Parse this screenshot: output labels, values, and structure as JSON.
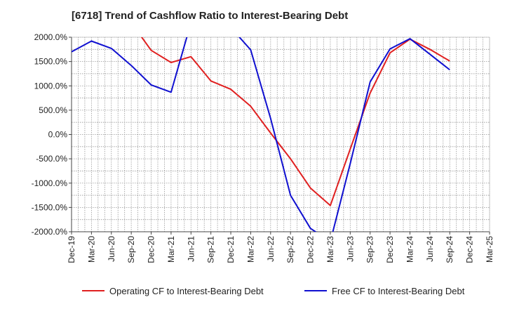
{
  "chart_data": {
    "type": "line",
    "title": "[6718]  Trend of Cashflow Ratio to Interest-Bearing Debt",
    "xlabel": "",
    "ylabel": "",
    "y_unit_suffix": "%",
    "ylim": [
      -2000,
      2000
    ],
    "yticks": [
      2000,
      1500,
      1000,
      500,
      0,
      -500,
      -1000,
      -1500,
      -2000
    ],
    "ytick_labels": [
      "2000.0%",
      "1500.0%",
      "1000.0%",
      "500.0%",
      "0.0%",
      "-500.0%",
      "-1000.0%",
      "-1500.0%",
      "-2000.0%"
    ],
    "x_categories": [
      "Dec-19",
      "Mar-20",
      "Jun-20",
      "Sep-20",
      "Dec-20",
      "Mar-21",
      "Jun-21",
      "Sep-21",
      "Dec-21",
      "Mar-22",
      "Jun-22",
      "Sep-22",
      "Dec-22",
      "Mar-23",
      "Jun-23",
      "Sep-23",
      "Dec-23",
      "Mar-24",
      "Jun-24",
      "Sep-24",
      "Dec-24",
      "Mar-25"
    ],
    "x_tick_labels": [
      "Dec-19",
      "Mar-20",
      "Jun-20",
      "Sep-20",
      "Dec-20",
      "Mar-21",
      "Jun-21",
      "Sep-21",
      "Dec-21",
      "Mar-22",
      "Jun-22",
      "Sep-22",
      "Dec-22",
      "Mar-23",
      "Jun-23",
      "Sep-23",
      "Dec-23",
      "Mar-24",
      "Jun-24",
      "Sep-24",
      "Dec-24",
      "Mar-25"
    ],
    "grid": true,
    "legend_position": "bottom",
    "series": [
      {
        "name": "Operating CF to Interest-Bearing Debt",
        "color": "#e02020",
        "values": [
          null,
          null,
          null,
          null,
          1730,
          1480,
          1600,
          1100,
          930,
          580,
          30,
          -500,
          -1100,
          -1460,
          -300,
          850,
          1680,
          1960,
          1750,
          1510,
          null,
          null
        ]
      },
      {
        "name": "Free CF to Interest-Bearing Debt",
        "color": "#1010d0",
        "values": [
          1700,
          1920,
          1770,
          1420,
          1020,
          870,
          2300,
          null,
          2200,
          1740,
          330,
          -1250,
          -1930,
          -2200,
          -600,
          1080,
          1760,
          1970,
          1650,
          1330,
          null,
          null
        ]
      }
    ],
    "offscale_endpoints": {
      "operating_start_value": 2300,
      "operating_start_index": 3
    }
  }
}
